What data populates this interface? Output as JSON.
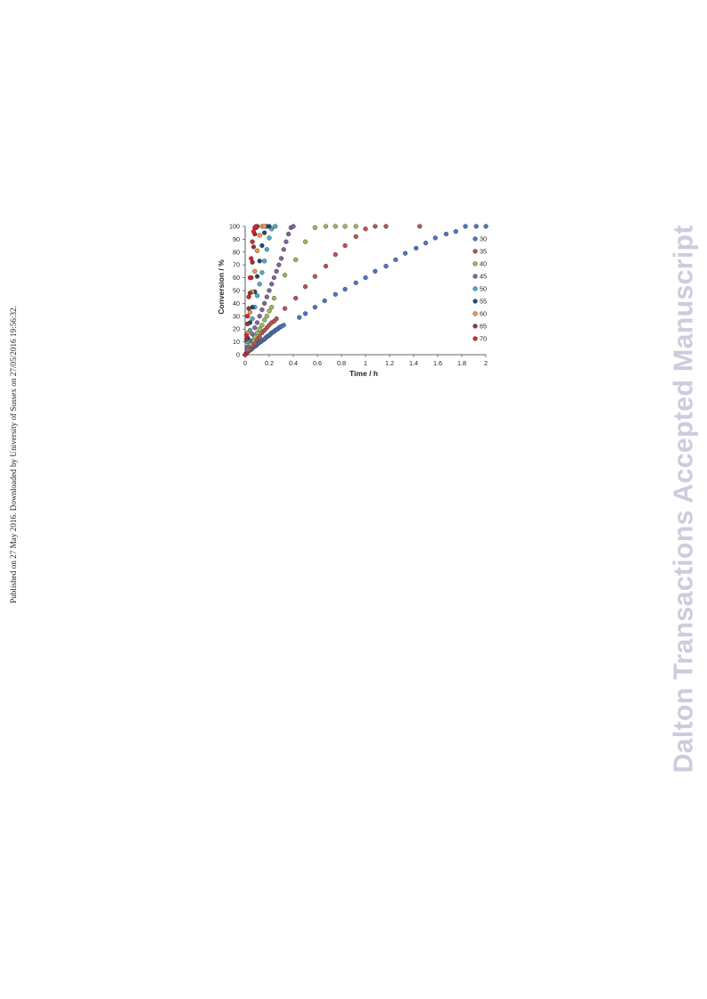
{
  "side_note": "Published on 27 May 2016. Downloaded by University of Sussex on 27/05/2016 19:56:32.",
  "watermark": "Dalton Transactions Accepted Manuscript",
  "chart_data": {
    "type": "scatter",
    "title": "",
    "xlabel": "Time / h",
    "ylabel": "Conversion / %",
    "xlim": [
      0,
      2
    ],
    "ylim": [
      0,
      100
    ],
    "xticks": [
      "0",
      "0.2",
      "0.4",
      "0.6",
      "0.8",
      "1",
      "1.2",
      "1.4",
      "1.6",
      "1.8",
      "2"
    ],
    "yticks": [
      "0",
      "10",
      "20",
      "30",
      "40",
      "50",
      "60",
      "70",
      "80",
      "90",
      "100"
    ],
    "grid": false,
    "legend_position": "right",
    "series": [
      {
        "name": "30",
        "color": "#4a78c2",
        "x": [
          0,
          0.01,
          0.02,
          0.03,
          0.04,
          0.05,
          0.06,
          0.07,
          0.08,
          0.09,
          0.1,
          0.11,
          0.12,
          0.13,
          0.14,
          0.15,
          0.16,
          0.17,
          0.18,
          0.19,
          0.2,
          0.21,
          0.22,
          0.23,
          0.24,
          0.25,
          0.26,
          0.27,
          0.28,
          0.29,
          0.3,
          0.32,
          0.45,
          0.5,
          0.58,
          0.66,
          0.75,
          0.83,
          0.92,
          1.0,
          1.08,
          1.17,
          1.25,
          1.33,
          1.42,
          1.5,
          1.58,
          1.67,
          1.75,
          1.83,
          1.92,
          2.0
        ],
        "y": [
          0,
          1,
          2,
          3,
          3.5,
          4,
          5,
          6,
          6.5,
          7,
          8,
          9,
          9.5,
          10,
          11,
          11.5,
          12,
          13,
          14,
          14.5,
          15,
          16,
          17,
          17.5,
          18,
          19,
          19.5,
          20,
          21,
          21.5,
          22,
          23,
          29,
          32,
          37,
          42,
          47,
          51,
          56,
          60,
          65,
          69,
          74,
          79,
          83,
          87,
          91,
          94,
          96,
          100,
          100,
          100
        ]
      },
      {
        "name": "35",
        "color": "#c0504d",
        "x": [
          0,
          0.02,
          0.04,
          0.06,
          0.08,
          0.1,
          0.12,
          0.14,
          0.16,
          0.18,
          0.2,
          0.22,
          0.24,
          0.26,
          0.33,
          0.42,
          0.5,
          0.58,
          0.67,
          0.75,
          0.83,
          0.92,
          1.0,
          1.08,
          1.17,
          1.45
        ],
        "y": [
          0,
          3,
          5,
          7,
          9,
          12,
          14,
          17,
          19,
          21,
          23,
          25,
          26,
          28,
          36,
          44,
          53,
          61,
          69,
          78,
          85,
          92,
          98,
          100,
          100,
          100
        ]
      },
      {
        "name": "40",
        "color": "#9bbb59",
        "x": [
          0,
          0.02,
          0.04,
          0.06,
          0.08,
          0.1,
          0.12,
          0.14,
          0.16,
          0.18,
          0.2,
          0.22,
          0.24,
          0.33,
          0.42,
          0.5,
          0.58,
          0.67,
          0.75,
          0.83,
          0.92
        ],
        "y": [
          0,
          5,
          8,
          11,
          14,
          17,
          20,
          23,
          27,
          30,
          34,
          37,
          44,
          62,
          74,
          88,
          99,
          100,
          100,
          100,
          100
        ]
      },
      {
        "name": "45",
        "color": "#8064a2",
        "x": [
          0,
          0.02,
          0.04,
          0.06,
          0.08,
          0.1,
          0.12,
          0.14,
          0.16,
          0.18,
          0.2,
          0.22,
          0.24,
          0.26,
          0.28,
          0.3,
          0.32,
          0.34,
          0.36,
          0.38,
          0.4
        ],
        "y": [
          0,
          6,
          11,
          16,
          21,
          25,
          30,
          35,
          40,
          45,
          50,
          55,
          60,
          65,
          70,
          75,
          82,
          88,
          94,
          99,
          100
        ]
      },
      {
        "name": "50",
        "color": "#4bacc6",
        "x": [
          0,
          0.02,
          0.04,
          0.06,
          0.08,
          0.1,
          0.12,
          0.14,
          0.16,
          0.18,
          0.2,
          0.22,
          0.25
        ],
        "y": [
          0,
          10,
          19,
          28,
          37,
          46,
          55,
          64,
          73,
          82,
          91,
          98,
          100
        ]
      },
      {
        "name": "55",
        "color": "#1f497d",
        "x": [
          0,
          0.02,
          0.04,
          0.06,
          0.08,
          0.1,
          0.12,
          0.14,
          0.16,
          0.18,
          0.2
        ],
        "y": [
          0,
          13,
          25,
          37,
          49,
          61,
          73,
          85,
          95,
          100,
          100
        ]
      },
      {
        "name": "60",
        "color": "#f79646",
        "x": [
          0,
          0.02,
          0.04,
          0.06,
          0.08,
          0.1,
          0.12,
          0.14,
          0.16
        ],
        "y": [
          0,
          17,
          33,
          49,
          65,
          81,
          93,
          100,
          100
        ]
      },
      {
        "name": "65",
        "color": "#943634",
        "x": [
          0,
          0.01,
          0.02,
          0.03,
          0.04,
          0.05,
          0.06,
          0.07,
          0.08,
          0.09,
          0.1
        ],
        "y": [
          0,
          12,
          24,
          36,
          48,
          60,
          72,
          84,
          94,
          99,
          100
        ]
      },
      {
        "name": "70",
        "color": "#e3202b",
        "x": [
          0,
          0.01,
          0.02,
          0.03,
          0.04,
          0.05,
          0.06,
          0.07,
          0.08,
          0.09
        ],
        "y": [
          0,
          15,
          30,
          45,
          60,
          75,
          88,
          96,
          99,
          100
        ]
      }
    ]
  }
}
